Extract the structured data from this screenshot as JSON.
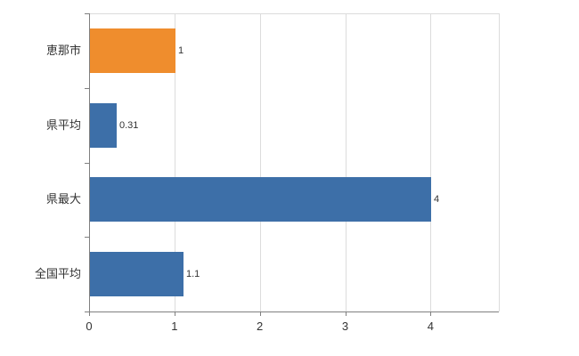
{
  "chart_data": {
    "type": "bar",
    "orientation": "horizontal",
    "title": "",
    "xlabel": "",
    "ylabel": "",
    "categories": [
      "恵那市",
      "県平均",
      "県最大",
      "全国平均"
    ],
    "values": [
      1,
      0.31,
      4,
      1.1
    ],
    "value_labels": [
      "1",
      "0.31",
      "4",
      "1.1"
    ],
    "bar_colors": [
      "#ef8d2d",
      "#3d6fa8",
      "#3d6fa8",
      "#3d6fa8"
    ],
    "xlim": [
      0,
      4.8
    ],
    "xticks": [
      0,
      1,
      2,
      3,
      4
    ],
    "xtick_labels": [
      "0",
      "1",
      "2",
      "3",
      "4"
    ],
    "grid": true,
    "legend": "none"
  }
}
